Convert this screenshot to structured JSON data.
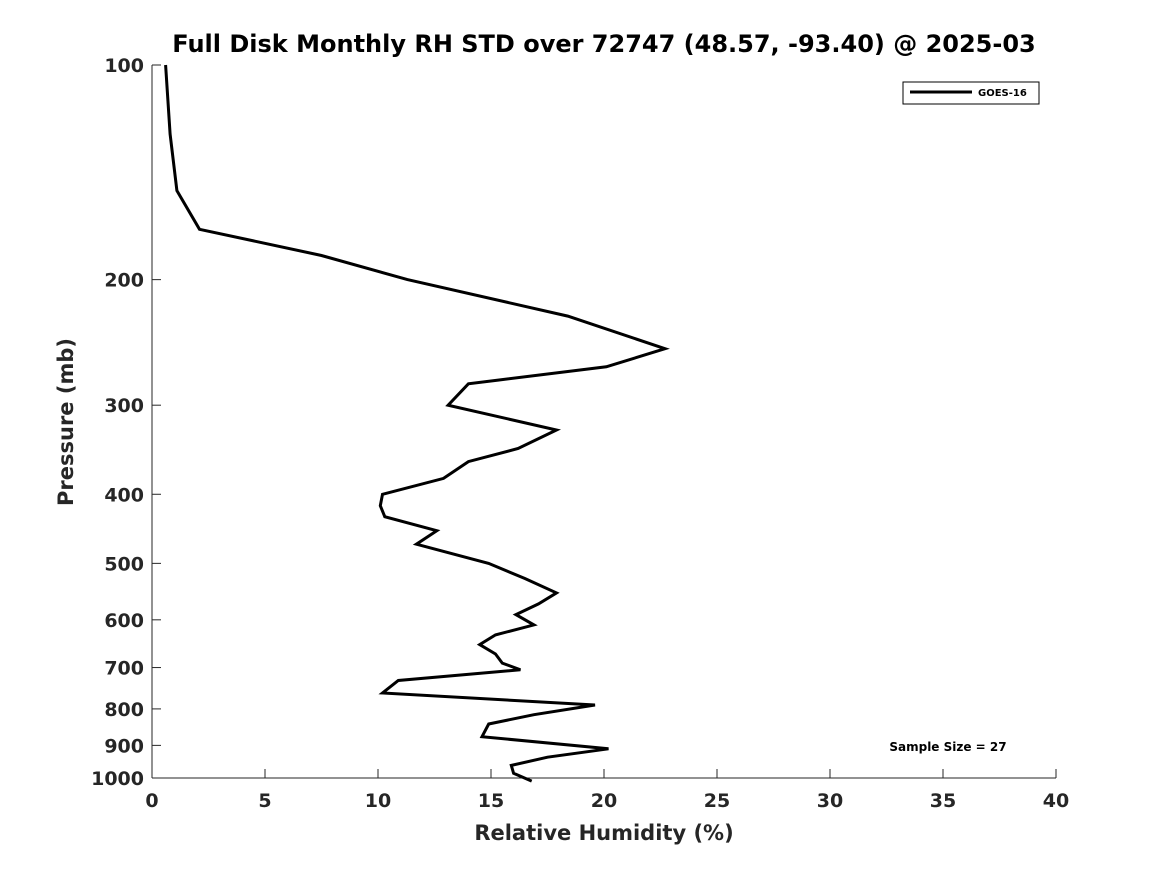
{
  "chart_data": {
    "type": "line",
    "title": "Full Disk Monthly RH STD over 72747 (48.57, -93.40) @ 2025-03",
    "xlabel": "Relative Humidity (%)",
    "ylabel": "Pressure (mb)",
    "xlim": [
      0,
      40
    ],
    "ylim": [
      100,
      1000
    ],
    "y_scale": "log",
    "y_reversed": true,
    "grid": false,
    "legend_position": "top-right",
    "x_ticks": [
      "0",
      "5",
      "10",
      "15",
      "20",
      "25",
      "30",
      "35",
      "40"
    ],
    "y_ticks": [
      "100",
      "200",
      "300",
      "400",
      "500",
      "600",
      "700",
      "800",
      "900",
      "1000"
    ],
    "series": [
      {
        "name": "GOES-16",
        "color": "#000000",
        "x": [
          0.6,
          0.8,
          1.1,
          2.1,
          7.5,
          11.3,
          18.4,
          22.7,
          20.1,
          14.0,
          13.1,
          17.9,
          16.2,
          14.0,
          12.9,
          10.2,
          10.1,
          10.3,
          12.6,
          11.7,
          14.9,
          16.5,
          17.9,
          17.1,
          16.1,
          16.9,
          15.2,
          14.5,
          15.2,
          15.5,
          16.3,
          10.9,
          10.2,
          19.6,
          16.9,
          14.9,
          14.6,
          20.2,
          17.5,
          15.9,
          16.0,
          16.8
        ],
        "y": [
          100,
          125,
          150,
          170,
          185,
          200,
          225,
          250,
          265,
          280,
          300,
          325,
          345,
          360,
          380,
          400,
          415,
          430,
          450,
          470,
          500,
          525,
          550,
          570,
          590,
          610,
          630,
          650,
          670,
          690,
          705,
          730,
          760,
          790,
          815,
          840,
          875,
          910,
          935,
          960,
          985,
          1010
        ]
      }
    ],
    "annotations": [
      "Sample Size = 27"
    ]
  }
}
